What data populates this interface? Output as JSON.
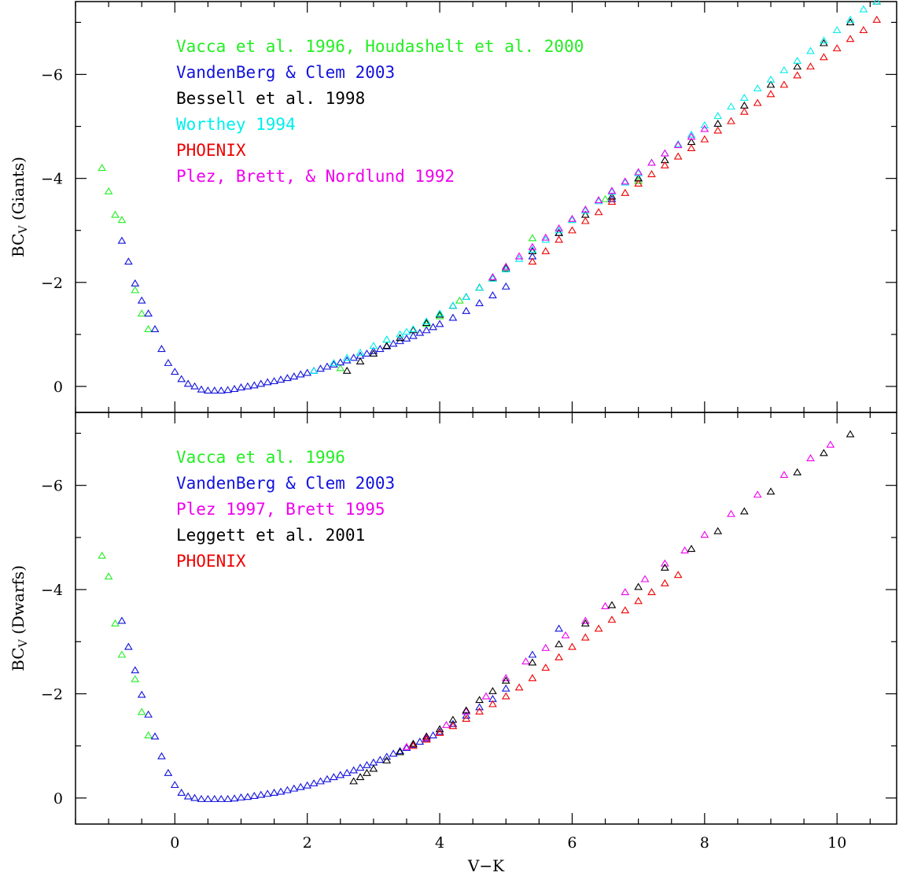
{
  "chart_data": [
    {
      "type": "scatter",
      "name": "giants",
      "ylabel_main": "BC",
      "ylabel_sub": "V",
      "ylabel_rest": " (Giants)",
      "xlabel": "",
      "xlim": [
        -1.5,
        10.9
      ],
      "ylim": [
        0.5,
        -7.4
      ],
      "x_ticks": [
        0,
        2,
        4,
        6,
        8,
        10
      ],
      "y_ticks": [
        0,
        -2,
        -4,
        -6
      ],
      "legend_placement": "top-left",
      "series": [
        {
          "name": "Vacca et al. 1996, Houdashelt et al. 2000",
          "color": "#22ee22",
          "x": [
            -1.1,
            -1.0,
            -0.9,
            -0.8,
            -0.6,
            -0.5,
            -0.4,
            2.5,
            3.2,
            3.8,
            4.0,
            4.3,
            4.6,
            4.8,
            5.0,
            5.4,
            6.0,
            6.5,
            7.0
          ],
          "y": [
            -4.2,
            -3.75,
            -3.3,
            -3.2,
            -1.85,
            -1.4,
            -1.1,
            -0.35,
            -0.9,
            -1.2,
            -1.35,
            -1.65,
            -1.9,
            -2.1,
            -2.3,
            -2.85,
            -3.2,
            -3.6,
            -3.95
          ]
        },
        {
          "name": "VandenBerg & Clem 2003",
          "color": "#1111dd",
          "x": [
            -0.8,
            -0.7,
            -0.6,
            -0.5,
            -0.4,
            -0.3,
            -0.2,
            -0.1,
            0.0,
            0.1,
            0.2,
            0.3,
            0.4,
            0.5,
            0.6,
            0.7,
            0.8,
            0.9,
            1.0,
            1.1,
            1.2,
            1.3,
            1.4,
            1.5,
            1.6,
            1.7,
            1.8,
            1.9,
            2.0,
            2.1,
            2.2,
            2.3,
            2.4,
            2.5,
            2.6,
            2.7,
            2.8,
            2.9,
            3.0,
            3.1,
            3.2,
            3.3,
            3.4,
            3.5,
            3.6,
            3.7,
            3.8,
            3.9,
            4.0,
            4.2,
            4.4,
            4.6,
            4.8,
            5.0,
            5.4,
            5.8,
            6.6,
            7.0
          ],
          "y": [
            -2.8,
            -2.4,
            -1.98,
            -1.65,
            -1.4,
            -1.1,
            -0.72,
            -0.45,
            -0.28,
            -0.14,
            -0.05,
            0.0,
            0.06,
            0.08,
            0.08,
            0.08,
            0.07,
            0.05,
            0.02,
            0.0,
            -0.02,
            -0.05,
            -0.08,
            -0.1,
            -0.13,
            -0.16,
            -0.19,
            -0.23,
            -0.26,
            -0.3,
            -0.34,
            -0.38,
            -0.42,
            -0.46,
            -0.5,
            -0.55,
            -0.59,
            -0.63,
            -0.68,
            -0.72,
            -0.77,
            -0.82,
            -0.87,
            -0.92,
            -0.97,
            -1.03,
            -1.08,
            -1.14,
            -1.2,
            -1.32,
            -1.45,
            -1.6,
            -1.75,
            -1.92,
            -2.5,
            -2.95,
            -3.6,
            -4.0
          ]
        },
        {
          "name": "Bessell et al. 1998",
          "color": "#000000",
          "x": [
            2.6,
            2.8,
            3.0,
            3.2,
            3.4,
            3.6,
            3.8,
            4.0,
            4.2,
            4.4,
            4.6,
            4.8,
            5.0,
            5.4,
            5.8,
            6.2,
            6.6,
            7.0,
            7.4,
            7.8,
            8.2,
            8.6,
            9.0,
            9.4,
            9.8,
            10.2,
            10.6
          ],
          "y": [
            -0.3,
            -0.48,
            -0.63,
            -0.78,
            -0.93,
            -1.08,
            -1.22,
            -1.38,
            -1.55,
            -1.72,
            -1.9,
            -2.08,
            -2.27,
            -2.6,
            -2.95,
            -3.3,
            -3.65,
            -4.0,
            -4.35,
            -4.7,
            -5.05,
            -5.4,
            -5.8,
            -6.15,
            -6.6,
            -7.0,
            -7.4
          ]
        },
        {
          "name": "Worthey 1994",
          "color": "#00eeee",
          "x": [
            2.1,
            2.4,
            2.6,
            2.8,
            3.0,
            3.2,
            3.4,
            3.5,
            3.6,
            3.8,
            4.0,
            4.2,
            4.4,
            4.6,
            4.8,
            5.0,
            5.2,
            5.4,
            5.6,
            5.8,
            6.0,
            6.2,
            6.4,
            6.6,
            6.8,
            7.0,
            7.2,
            7.4,
            7.6,
            7.8,
            8.0,
            8.2,
            8.4,
            8.6,
            8.8,
            9.0,
            9.2,
            9.4,
            9.6,
            9.8,
            10.0,
            10.2,
            10.4,
            10.6
          ],
          "y": [
            -0.3,
            -0.45,
            -0.55,
            -0.65,
            -0.78,
            -0.9,
            -1.0,
            -1.05,
            -1.1,
            -1.25,
            -1.4,
            -1.55,
            -1.72,
            -1.9,
            -2.07,
            -2.25,
            -2.45,
            -2.63,
            -2.82,
            -3.0,
            -3.2,
            -3.38,
            -3.56,
            -3.74,
            -3.92,
            -4.1,
            -4.3,
            -4.48,
            -4.66,
            -4.84,
            -5.02,
            -5.2,
            -5.38,
            -5.55,
            -5.73,
            -5.9,
            -6.08,
            -6.26,
            -6.45,
            -6.65,
            -6.85,
            -7.05,
            -7.25,
            -7.4
          ]
        },
        {
          "name": "PHOENIX",
          "color": "#ee0000",
          "x": [
            5.4,
            5.6,
            5.8,
            6.0,
            6.2,
            6.4,
            6.6,
            6.8,
            7.0,
            7.2,
            7.4,
            7.6,
            7.8,
            8.0,
            8.2,
            8.4,
            8.6,
            8.8,
            9.0,
            9.2,
            9.4,
            9.6,
            9.8,
            10.0,
            10.2,
            10.4,
            10.6
          ],
          "y": [
            -2.4,
            -2.6,
            -2.82,
            -3.0,
            -3.18,
            -3.35,
            -3.55,
            -3.72,
            -3.9,
            -4.08,
            -4.25,
            -4.42,
            -4.58,
            -4.75,
            -4.92,
            -5.1,
            -5.28,
            -5.45,
            -5.62,
            -5.8,
            -5.98,
            -6.15,
            -6.33,
            -6.5,
            -6.68,
            -6.85,
            -7.05
          ]
        },
        {
          "name": "Plez, Brett, & Nordlund 1992",
          "color": "#ee00ee",
          "x": [
            4.8,
            5.0,
            5.2,
            5.4,
            5.6,
            5.8,
            6.0,
            6.2,
            6.4,
            6.6,
            6.8,
            7.0,
            7.2,
            7.4,
            7.6,
            7.8,
            8.0
          ],
          "y": [
            -2.1,
            -2.3,
            -2.5,
            -2.68,
            -2.86,
            -3.04,
            -3.22,
            -3.4,
            -3.58,
            -3.76,
            -3.94,
            -4.12,
            -4.3,
            -4.48,
            -4.64,
            -4.8,
            -4.95
          ]
        }
      ]
    },
    {
      "type": "scatter",
      "name": "dwarfs",
      "ylabel_main": "BC",
      "ylabel_sub": "V",
      "ylabel_rest": " (Dwarfs)",
      "xlabel": "V−K",
      "xlim": [
        -1.5,
        10.9
      ],
      "ylim": [
        0.5,
        -7.4
      ],
      "x_ticks": [
        0,
        2,
        4,
        6,
        8,
        10
      ],
      "y_ticks": [
        0,
        -2,
        -4,
        -6
      ],
      "legend_placement": "top-left",
      "series": [
        {
          "name": "Vacca et al. 1996",
          "color": "#22ee22",
          "x": [
            -1.1,
            -1.0,
            -0.9,
            -0.8,
            -0.6,
            -0.5,
            -0.4
          ],
          "y": [
            -4.65,
            -4.25,
            -3.35,
            -2.75,
            -2.28,
            -1.65,
            -1.2
          ]
        },
        {
          "name": "VandenBerg & Clem 2003",
          "color": "#1111dd",
          "x": [
            -0.8,
            -0.7,
            -0.6,
            -0.5,
            -0.4,
            -0.3,
            -0.2,
            -0.1,
            0.0,
            0.1,
            0.2,
            0.3,
            0.4,
            0.5,
            0.6,
            0.7,
            0.8,
            0.9,
            1.0,
            1.1,
            1.2,
            1.3,
            1.4,
            1.5,
            1.6,
            1.7,
            1.8,
            1.9,
            2.0,
            2.1,
            2.2,
            2.3,
            2.4,
            2.5,
            2.6,
            2.7,
            2.8,
            2.9,
            3.0,
            3.1,
            3.2,
            3.3,
            3.4,
            3.5,
            3.6,
            3.7,
            3.8,
            3.9,
            4.0,
            4.2,
            4.4,
            4.6,
            4.8,
            5.0,
            5.4,
            5.8
          ],
          "y": [
            -3.4,
            -2.9,
            -2.45,
            -1.98,
            -1.6,
            -1.18,
            -0.8,
            -0.48,
            -0.25,
            -0.1,
            -0.03,
            0.0,
            0.02,
            0.02,
            0.02,
            0.02,
            0.02,
            0.01,
            -0.01,
            -0.02,
            -0.04,
            -0.06,
            -0.08,
            -0.1,
            -0.12,
            -0.15,
            -0.18,
            -0.21,
            -0.24,
            -0.28,
            -0.32,
            -0.36,
            -0.4,
            -0.44,
            -0.48,
            -0.53,
            -0.58,
            -0.63,
            -0.68,
            -0.73,
            -0.79,
            -0.85,
            -0.9,
            -0.96,
            -1.02,
            -1.08,
            -1.14,
            -1.2,
            -1.27,
            -1.42,
            -1.58,
            -1.74,
            -1.9,
            -2.1,
            -2.75,
            -3.25
          ]
        },
        {
          "name": "Plez 1997, Brett 1995",
          "color": "#ee00ee",
          "x": [
            3.5,
            3.8,
            4.1,
            4.4,
            4.7,
            5.0,
            5.3,
            5.6,
            5.9,
            6.2,
            6.5,
            6.8,
            7.1,
            7.4,
            7.7,
            8.0,
            8.4,
            8.8,
            9.2,
            9.6,
            9.9
          ],
          "y": [
            -0.98,
            -1.16,
            -1.4,
            -1.66,
            -1.95,
            -2.3,
            -2.62,
            -2.88,
            -3.12,
            -3.4,
            -3.68,
            -3.95,
            -4.2,
            -4.5,
            -4.75,
            -5.05,
            -5.45,
            -5.82,
            -6.2,
            -6.52,
            -6.78
          ]
        },
        {
          "name": "Leggett et al. 2001",
          "color": "#000000",
          "x": [
            2.7,
            2.8,
            2.9,
            3.0,
            3.2,
            3.4,
            3.6,
            3.8,
            4.0,
            4.2,
            4.4,
            4.6,
            4.8,
            5.0,
            5.4,
            5.8,
            6.2,
            6.6,
            7.0,
            7.4,
            7.8,
            8.2,
            8.6,
            9.0,
            9.4,
            9.8,
            10.2
          ],
          "y": [
            -0.32,
            -0.4,
            -0.48,
            -0.56,
            -0.72,
            -0.88,
            -1.04,
            -1.18,
            -1.32,
            -1.5,
            -1.68,
            -1.88,
            -2.05,
            -2.25,
            -2.6,
            -2.95,
            -3.35,
            -3.7,
            -4.05,
            -4.42,
            -4.78,
            -5.12,
            -5.5,
            -5.88,
            -6.25,
            -6.62,
            -6.98
          ]
        },
        {
          "name": "PHOENIX",
          "color": "#ee0000",
          "x": [
            3.6,
            3.8,
            4.0,
            4.2,
            4.4,
            4.6,
            4.8,
            5.0,
            5.2,
            5.4,
            5.6,
            5.8,
            6.0,
            6.2,
            6.4,
            6.6,
            6.8,
            7.0,
            7.2,
            7.4,
            7.6
          ],
          "y": [
            -1.0,
            -1.12,
            -1.25,
            -1.38,
            -1.52,
            -1.66,
            -1.8,
            -1.95,
            -2.12,
            -2.3,
            -2.5,
            -2.7,
            -2.9,
            -3.08,
            -3.25,
            -3.42,
            -3.6,
            -3.78,
            -3.95,
            -4.12,
            -4.28
          ]
        }
      ]
    }
  ]
}
